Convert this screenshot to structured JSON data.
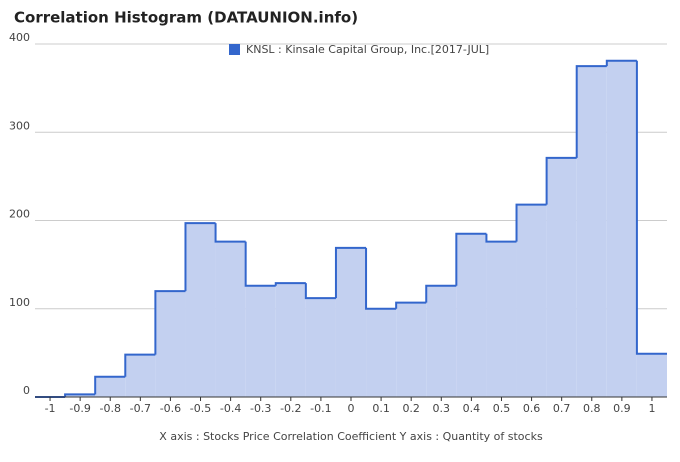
{
  "chart_data": {
    "type": "histogram",
    "title": "Correlation Histogram (DATAUNION.info)",
    "x_label": "X axis : Stocks Price Correlation Coefficient  Y axis : Quantity of stocks",
    "series_name": "KNSL : Kinsale Capital Group, Inc.[2017-JUL]",
    "color": "#3366cc",
    "fill": "#c3d0f0",
    "bins": [
      -1.05,
      -0.95,
      -0.85,
      -0.75,
      -0.65,
      -0.55,
      -0.45,
      -0.35,
      -0.25,
      -0.15,
      -0.05,
      0.05,
      0.15,
      0.25,
      0.35,
      0.45,
      0.55,
      0.65,
      0.75,
      0.85,
      0.95,
      1.05
    ],
    "values": [
      0,
      3,
      23,
      48,
      120,
      197,
      176,
      126,
      129,
      112,
      169,
      100,
      107,
      126,
      185,
      176,
      218,
      271,
      375,
      381,
      49
    ],
    "xlim": [
      -1.05,
      1.05
    ],
    "xticks": [
      -1,
      -0.9,
      -0.8,
      -0.7,
      -0.6,
      -0.5,
      -0.4,
      -0.3,
      -0.2,
      -0.1,
      0,
      0.1,
      0.2,
      0.3,
      0.4,
      0.5,
      0.6,
      0.7,
      0.8,
      0.9,
      1
    ],
    "ylim": [
      0,
      400
    ],
    "yticks": [
      0,
      100,
      200,
      300,
      400
    ],
    "grid": true
  }
}
